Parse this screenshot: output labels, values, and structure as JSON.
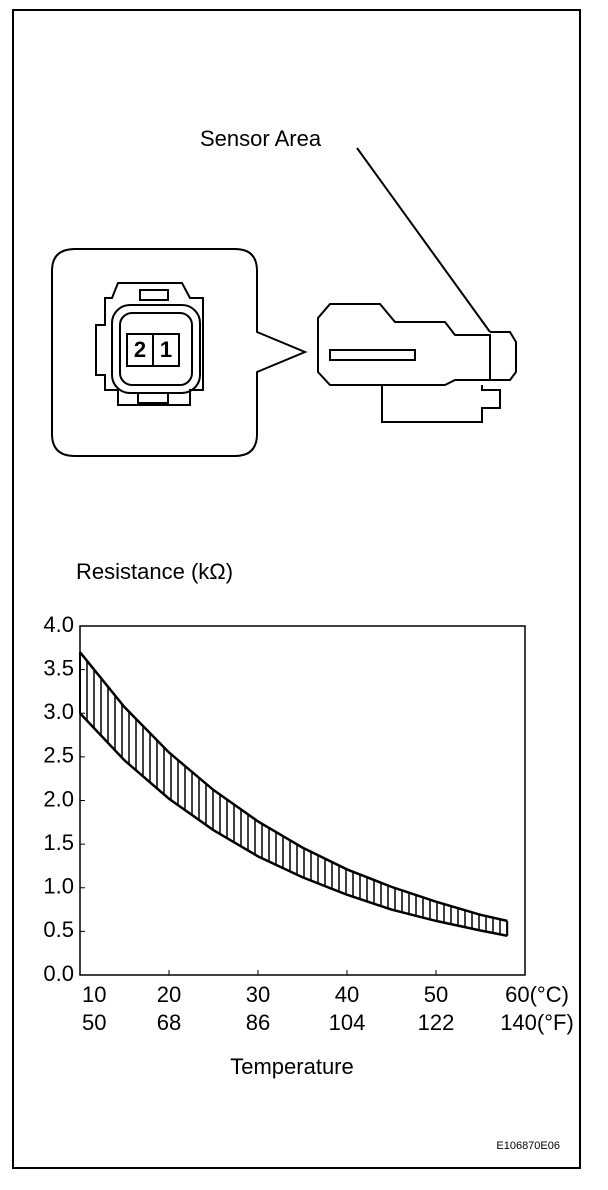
{
  "diagram": {
    "sensor_label": "Sensor Area",
    "pins": [
      "2",
      "1"
    ],
    "code": "E106870E06"
  },
  "chart_data": {
    "type": "line",
    "ylabel": "Resistance (kΩ)",
    "xlabel": "Temperature",
    "xlim": [
      10,
      60
    ],
    "xticks": [
      10,
      20,
      30,
      40,
      50,
      {
        "value": 60,
        "label": "60(°C)"
      }
    ],
    "fahrenheit_labels": [
      "50",
      "68",
      "86",
      "104",
      "122",
      "140(°F)"
    ],
    "ylim": [
      0,
      4
    ],
    "yticks": [
      {
        "value": 0,
        "label": "0.0"
      },
      {
        "value": 0.5,
        "label": "0.5"
      },
      {
        "value": 1,
        "label": "1.0"
      },
      {
        "value": 1.5,
        "label": "1.5"
      },
      {
        "value": 2,
        "label": "2.0"
      },
      {
        "value": 2.5,
        "label": "2.5"
      },
      {
        "value": 3,
        "label": "3.0"
      },
      {
        "value": 3.5,
        "label": "3.5"
      },
      {
        "value": 4,
        "label": "4.0"
      }
    ],
    "x": [
      10,
      15,
      20,
      25,
      30,
      35,
      40,
      45,
      50,
      55,
      58
    ],
    "series": [
      {
        "color": "#000000",
        "values": [
          3.7,
          3.07,
          2.55,
          2.12,
          1.76,
          1.46,
          1.21,
          1.01,
          0.84,
          0.69,
          0.62
        ]
      },
      {
        "color": "#000000",
        "values": [
          3.0,
          2.46,
          2.02,
          1.66,
          1.36,
          1.12,
          0.92,
          0.75,
          0.62,
          0.51,
          0.45
        ]
      }
    ]
  }
}
